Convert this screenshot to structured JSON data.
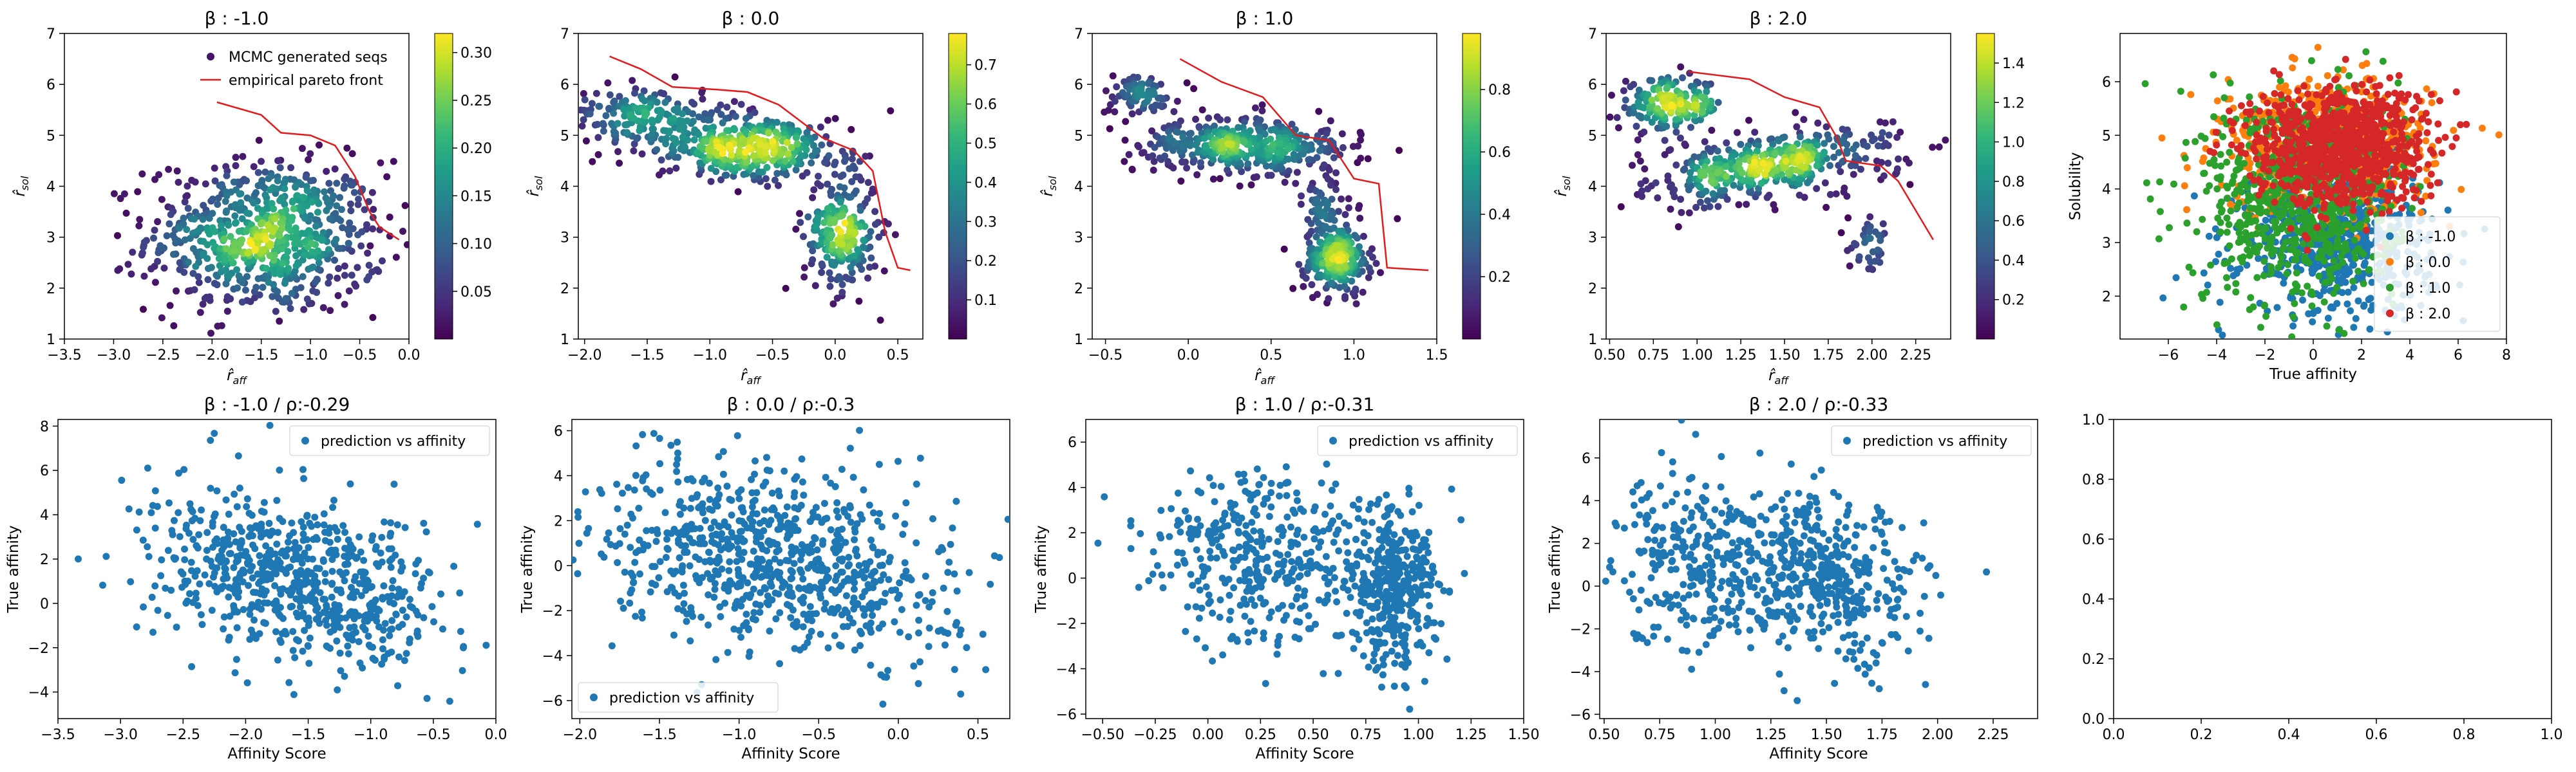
{
  "colors": {
    "accent": "#1f77b4",
    "pareto": "#e41a1c",
    "beta_colors": [
      "#1f77b4",
      "#ff7f0e",
      "#2ca02c",
      "#d62728"
    ]
  },
  "chart_data": [
    {
      "type": "scatter",
      "title": "β :  -1.0",
      "xlabel": "r̂aff",
      "ylabel": "r̂sol",
      "xlim": [
        -3.5,
        0.0
      ],
      "ylim": [
        1,
        7
      ],
      "xticks": [
        -3.5,
        -3.0,
        -2.5,
        -2.0,
        -1.5,
        -1.0,
        -0.5,
        0.0
      ],
      "yticks": [
        1,
        2,
        3,
        4,
        5,
        6,
        7
      ],
      "colorbar": {
        "min": 0.0,
        "max": 0.32,
        "ticks": [
          0.05,
          0.1,
          0.15,
          0.2,
          0.25,
          0.3
        ]
      },
      "legend": {
        "position": "upper-right",
        "entries": [
          "MCMC generated seqs",
          "empirical pareto front"
        ]
      },
      "clusters": [
        {
          "cx": -1.45,
          "cy": 3.0,
          "sx": 0.6,
          "sy": 0.75,
          "n": 750,
          "rot": 0
        }
      ],
      "pareto_front": [
        [
          -1.95,
          5.65
        ],
        [
          -1.5,
          5.4
        ],
        [
          -1.3,
          5.05
        ],
        [
          -1.0,
          5.0
        ],
        [
          -0.75,
          4.8
        ],
        [
          -0.55,
          4.2
        ],
        [
          -0.4,
          3.5
        ],
        [
          -0.3,
          3.2
        ],
        [
          -0.1,
          2.95
        ]
      ]
    },
    {
      "type": "scatter",
      "title": "β :  0.0",
      "xlabel": "r̂aff",
      "ylabel": "r̂sol",
      "xlim": [
        -2.05,
        0.7
      ],
      "ylim": [
        1,
        7
      ],
      "xticks": [
        -2.0,
        -1.5,
        -1.0,
        -0.5,
        0.0,
        0.5
      ],
      "yticks": [
        1,
        2,
        3,
        4,
        5,
        6,
        7
      ],
      "colorbar": {
        "min": 0.0,
        "max": 0.78,
        "ticks": [
          0.1,
          0.2,
          0.3,
          0.4,
          0.5,
          0.6,
          0.7
        ]
      },
      "clusters": [
        {
          "cx": -0.75,
          "cy": 4.8,
          "sx": 0.45,
          "sy": 0.35,
          "n": 450,
          "rot": -0.45
        },
        {
          "cx": -1.55,
          "cy": 5.5,
          "sx": 0.25,
          "sy": 0.25,
          "n": 120,
          "rot": 0
        },
        {
          "cx": 0.05,
          "cy": 3.1,
          "sx": 0.15,
          "sy": 0.6,
          "n": 250,
          "rot": 0
        }
      ],
      "pareto_front": [
        [
          -1.8,
          6.55
        ],
        [
          -1.55,
          6.3
        ],
        [
          -1.3,
          5.95
        ],
        [
          -0.95,
          5.9
        ],
        [
          -0.7,
          5.85
        ],
        [
          -0.45,
          5.6
        ],
        [
          -0.1,
          4.95
        ],
        [
          0.15,
          4.7
        ],
        [
          0.3,
          4.3
        ],
        [
          0.4,
          3.1
        ],
        [
          0.5,
          2.4
        ],
        [
          0.6,
          2.35
        ]
      ]
    },
    {
      "type": "scatter",
      "title": "β :  1.0",
      "xlabel": "r̂aff",
      "ylabel": "r̂sol",
      "xlim": [
        -0.58,
        1.5
      ],
      "ylim": [
        1,
        7
      ],
      "xticks": [
        -0.5,
        0.0,
        0.5,
        1.0,
        1.5
      ],
      "yticks": [
        1,
        2,
        3,
        4,
        5,
        6,
        7
      ],
      "colorbar": {
        "min": 0.0,
        "max": 0.98,
        "ticks": [
          0.2,
          0.4,
          0.6,
          0.8
        ]
      },
      "clusters": [
        {
          "cx": 0.35,
          "cy": 4.8,
          "sx": 0.3,
          "sy": 0.3,
          "n": 450,
          "rot": -0.5
        },
        {
          "cx": -0.3,
          "cy": 5.8,
          "sx": 0.12,
          "sy": 0.2,
          "n": 80,
          "rot": 0
        },
        {
          "cx": 0.9,
          "cy": 2.6,
          "sx": 0.1,
          "sy": 0.35,
          "n": 250,
          "rot": 0
        },
        {
          "cx": 0.8,
          "cy": 3.6,
          "sx": 0.1,
          "sy": 0.3,
          "n": 60,
          "rot": 0
        }
      ],
      "pareto_front": [
        [
          -0.05,
          6.5
        ],
        [
          0.2,
          6.05
        ],
        [
          0.45,
          5.75
        ],
        [
          0.65,
          5.0
        ],
        [
          0.85,
          4.9
        ],
        [
          1.0,
          4.15
        ],
        [
          1.15,
          4.05
        ],
        [
          1.2,
          2.4
        ],
        [
          1.45,
          2.35
        ]
      ]
    },
    {
      "type": "scatter",
      "title": "β :  2.0",
      "xlabel": "r̂aff",
      "ylabel": "r̂sol",
      "xlim": [
        0.48,
        2.45
      ],
      "ylim": [
        1,
        7
      ],
      "xticks": [
        0.5,
        0.75,
        1.0,
        1.25,
        1.5,
        1.75,
        2.0,
        2.25
      ],
      "yticks": [
        1,
        2,
        3,
        4,
        5,
        6,
        7
      ],
      "colorbar": {
        "min": 0.0,
        "max": 1.55,
        "ticks": [
          0.2,
          0.4,
          0.6,
          0.8,
          1.0,
          1.2,
          1.4
        ]
      },
      "clusters": [
        {
          "cx": 1.4,
          "cy": 4.4,
          "sx": 0.3,
          "sy": 0.45,
          "n": 450,
          "rot": -0.55
        },
        {
          "cx": 0.85,
          "cy": 5.6,
          "sx": 0.15,
          "sy": 0.25,
          "n": 200,
          "rot": 0
        },
        {
          "cx": 2.0,
          "cy": 2.8,
          "sx": 0.07,
          "sy": 0.25,
          "n": 40,
          "rot": 0
        }
      ],
      "pareto_front": [
        [
          0.95,
          6.25
        ],
        [
          1.3,
          6.1
        ],
        [
          1.5,
          5.75
        ],
        [
          1.7,
          5.55
        ],
        [
          1.8,
          4.95
        ],
        [
          1.85,
          4.5
        ],
        [
          2.05,
          4.4
        ],
        [
          2.15,
          4.1
        ],
        [
          2.35,
          2.95
        ]
      ]
    },
    {
      "type": "scatter",
      "xlabel": "True affinity",
      "ylabel": "Solubility",
      "xlim": [
        -8,
        8
      ],
      "ylim": [
        1.2,
        6.9
      ],
      "xticks": [
        -6,
        -4,
        -2,
        0,
        2,
        4,
        6,
        8
      ],
      "yticks": [
        2,
        3,
        4,
        5,
        6
      ],
      "legend": {
        "position": "lower-right",
        "entries": [
          "β : -1.0",
          "β : 0.0",
          "β : 1.0",
          "β : 2.0"
        ]
      },
      "series": [
        {
          "name": "β : -1.0",
          "clusters": [
            {
              "cx": 1.0,
              "cy": 3.0,
              "sx": 2.0,
              "sy": 0.7,
              "n": 600
            }
          ]
        },
        {
          "name": "β : 0.0",
          "clusters": [
            {
              "cx": 0.5,
              "cy": 4.8,
              "sx": 2.2,
              "sy": 0.6,
              "n": 600
            }
          ]
        },
        {
          "name": "β : 1.0",
          "clusters": [
            {
              "cx": -0.5,
              "cy": 3.8,
              "sx": 2.0,
              "sy": 1.0,
              "n": 700
            }
          ]
        },
        {
          "name": "β : 2.0",
          "clusters": [
            {
              "cx": 1.0,
              "cy": 4.8,
              "sx": 1.8,
              "sy": 0.55,
              "n": 900
            }
          ]
        }
      ]
    },
    {
      "type": "scatter",
      "title": "β :  -1.0 / ρ:-0.29",
      "xlabel": "Affinity Score",
      "ylabel": "True affinity",
      "xlim": [
        -3.5,
        0.0
      ],
      "ylim": [
        -5.2,
        8.3
      ],
      "xticks": [
        -3.5,
        -3.0,
        -2.5,
        -2.0,
        -1.5,
        -1.0,
        -0.5,
        0.0
      ],
      "yticks": [
        -4,
        -2,
        0,
        2,
        4,
        6,
        8
      ],
      "legend": {
        "position": "upper-right",
        "entries": [
          "prediction vs affinity"
        ]
      },
      "clusters": [
        {
          "cx": -1.55,
          "cy": 1.0,
          "sx": 0.6,
          "sy": 1.8,
          "n": 700,
          "slope": -0.9
        }
      ]
    },
    {
      "type": "scatter",
      "title": "β :  0.0 / ρ:-0.3",
      "xlabel": "Affinity Score",
      "ylabel": "True affinity",
      "xlim": [
        -2.05,
        0.7
      ],
      "ylim": [
        -6.8,
        6.5
      ],
      "xticks": [
        -2.0,
        -1.5,
        -1.0,
        -0.5,
        0.0,
        0.5
      ],
      "yticks": [
        -6,
        -4,
        -2,
        0,
        2,
        4,
        6
      ],
      "legend": {
        "position": "lower-left",
        "entries": [
          "prediction vs affinity"
        ]
      },
      "clusters": [
        {
          "cx": -0.75,
          "cy": 0.3,
          "sx": 0.55,
          "sy": 2.0,
          "n": 800,
          "slope": -1.2
        }
      ]
    },
    {
      "type": "scatter",
      "title": "β :  1.0 / ρ:-0.31",
      "xlabel": "Affinity Score",
      "ylabel": "True affinity",
      "xlim": [
        -0.58,
        1.5
      ],
      "ylim": [
        -6.2,
        7.0
      ],
      "xticks": [
        -0.5,
        -0.25,
        0.0,
        0.25,
        0.5,
        0.75,
        1.0,
        1.25,
        1.5
      ],
      "yticks": [
        -6,
        -4,
        -2,
        0,
        2,
        4,
        6
      ],
      "legend": {
        "position": "upper-right",
        "entries": [
          "prediction vs affinity"
        ]
      },
      "clusters": [
        {
          "cx": 0.3,
          "cy": 0.8,
          "sx": 0.3,
          "sy": 1.9,
          "n": 400,
          "slope": -0.8
        },
        {
          "cx": 0.88,
          "cy": -0.5,
          "sx": 0.1,
          "sy": 1.8,
          "n": 350,
          "slope": 0
        }
      ]
    },
    {
      "type": "scatter",
      "title": "β :  2.0 / ρ:-0.33",
      "xlabel": "Affinity Score",
      "ylabel": "True affinity",
      "xlim": [
        0.48,
        2.45
      ],
      "ylim": [
        -6.2,
        7.8
      ],
      "xticks": [
        0.5,
        0.75,
        1.0,
        1.25,
        1.5,
        1.75,
        2.0,
        2.25
      ],
      "yticks": [
        -6,
        -4,
        -2,
        0,
        2,
        4,
        6
      ],
      "legend": {
        "position": "upper-right",
        "entries": [
          "prediction vs affinity"
        ]
      },
      "clusters": [
        {
          "cx": 1.45,
          "cy": 0.3,
          "sx": 0.25,
          "sy": 1.9,
          "n": 500,
          "slope": -1.4
        },
        {
          "cx": 0.85,
          "cy": 1.5,
          "sx": 0.15,
          "sy": 2.0,
          "n": 200,
          "slope": 0
        }
      ]
    },
    {
      "type": "scatter",
      "empty": true,
      "xlim": [
        0.0,
        1.0
      ],
      "ylim": [
        0.0,
        1.0
      ],
      "xticks": [
        0.0,
        0.2,
        0.4,
        0.6,
        0.8,
        1.0
      ],
      "yticks": [
        0.0,
        0.2,
        0.4,
        0.6,
        0.8,
        1.0
      ]
    }
  ]
}
